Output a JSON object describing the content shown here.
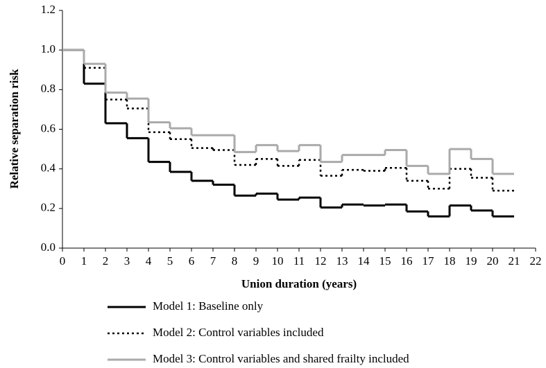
{
  "chart_data": {
    "type": "line",
    "step": "post",
    "xlabel": "Union duration  (years)",
    "ylabel": "Relative separation risk",
    "x": [
      0,
      1,
      2,
      3,
      4,
      5,
      6,
      7,
      8,
      9,
      10,
      11,
      12,
      13,
      14,
      15,
      16,
      17,
      18,
      19,
      20
    ],
    "series": [
      {
        "name": "Model 1: Baseline only",
        "color": "#000000",
        "dash": "solid",
        "width": 3,
        "values": [
          1.0,
          0.83,
          0.63,
          0.555,
          0.435,
          0.385,
          0.34,
          0.32,
          0.265,
          0.275,
          0.245,
          0.255,
          0.205,
          0.22,
          0.215,
          0.22,
          0.185,
          0.16,
          0.215,
          0.19,
          0.16
        ]
      },
      {
        "name": "Model 2:  Control variables included",
        "color": "#000000",
        "dash": "dotted",
        "width": 2.5,
        "values": [
          1.0,
          0.91,
          0.75,
          0.705,
          0.585,
          0.55,
          0.505,
          0.495,
          0.42,
          0.45,
          0.415,
          0.445,
          0.365,
          0.395,
          0.39,
          0.405,
          0.34,
          0.3,
          0.4,
          0.355,
          0.29
        ]
      },
      {
        "name": "Model 3: Control variables and shared frailty included",
        "color": "#aaaaaa",
        "dash": "solid",
        "width": 3,
        "values": [
          1.0,
          0.93,
          0.785,
          0.755,
          0.635,
          0.605,
          0.57,
          0.57,
          0.485,
          0.52,
          0.49,
          0.52,
          0.435,
          0.47,
          0.47,
          0.495,
          0.415,
          0.375,
          0.5,
          0.45,
          0.375
        ]
      }
    ],
    "xlim": [
      0,
      22
    ],
    "xticks": [
      0,
      1,
      2,
      3,
      4,
      5,
      6,
      7,
      8,
      9,
      10,
      11,
      12,
      13,
      14,
      15,
      16,
      17,
      18,
      19,
      20,
      21,
      22
    ],
    "ylim": [
      0,
      1.2
    ],
    "yticks": [
      {
        "value": 0,
        "label": "0.0"
      },
      {
        "value": 0.2,
        "label": "0.2"
      },
      {
        "value": 0.4,
        "label": "0.4"
      },
      {
        "value": 0.6,
        "label": "0.6"
      },
      {
        "value": 0.8,
        "label": "0.8"
      },
      {
        "value": 1,
        "label": "1.0"
      },
      {
        "value": 1.2,
        "label": "1.2"
      }
    ],
    "legend": "bottom"
  }
}
